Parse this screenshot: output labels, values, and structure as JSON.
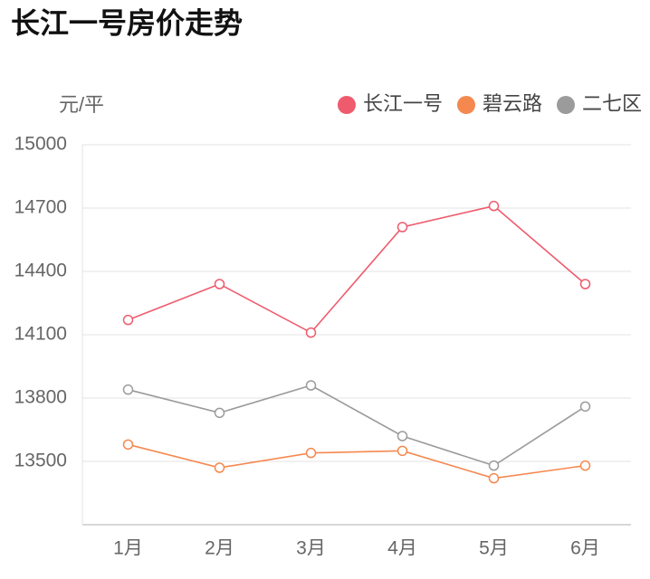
{
  "chart_data": {
    "type": "line",
    "title": "长江一号房价走势",
    "y_label": "元/平",
    "categories": [
      "1月",
      "2月",
      "3月",
      "4月",
      "5月",
      "6月"
    ],
    "series": [
      {
        "name": "长江一号",
        "color": "#ee5b6d",
        "values": [
          14170,
          14340,
          14110,
          14610,
          14710,
          14340
        ]
      },
      {
        "name": "碧云路",
        "color": "#f5884f",
        "values": [
          13580,
          13470,
          13540,
          13550,
          13420,
          13480
        ]
      },
      {
        "name": "二七区",
        "color": "#9b9b9b",
        "values": [
          13840,
          13730,
          13860,
          13620,
          13480,
          13760
        ]
      }
    ],
    "ylim": [
      13200,
      15000
    ],
    "yticks": [
      13500,
      13800,
      14100,
      14400,
      14700,
      15000
    ],
    "grid": true,
    "legend": "top-right"
  }
}
